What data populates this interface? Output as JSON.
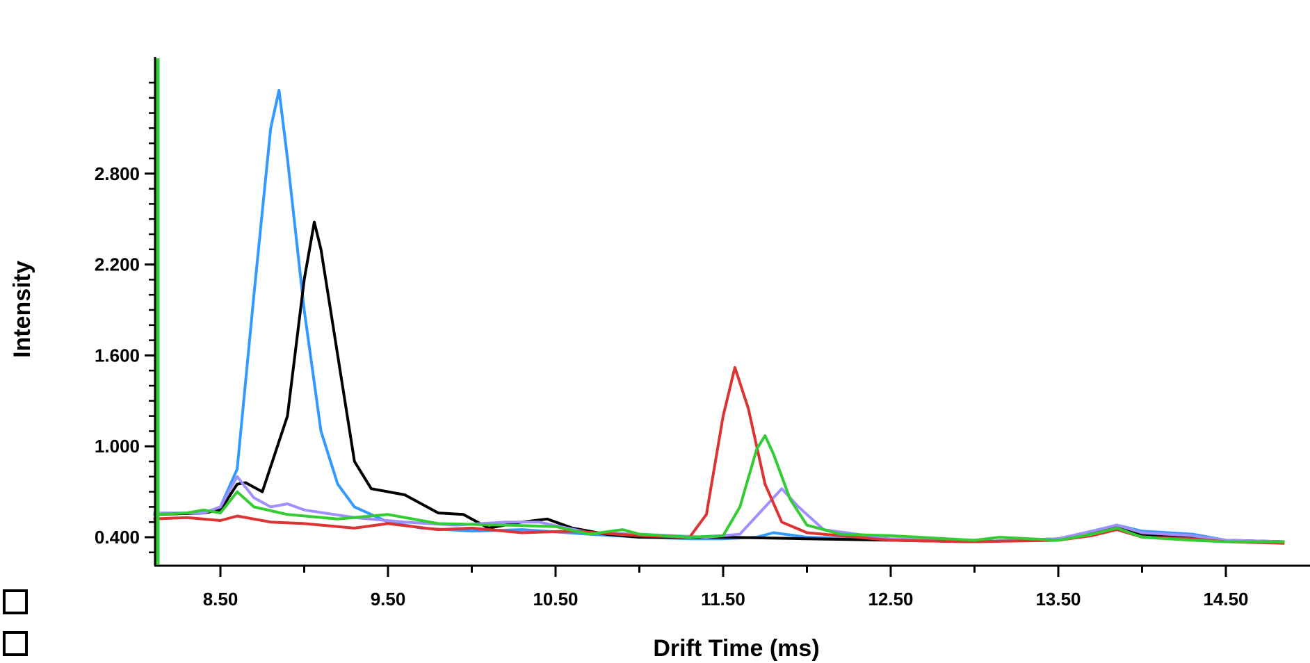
{
  "chart_data": {
    "type": "line",
    "title": "",
    "xlabel": "Drift Time (ms)",
    "ylabel": "Intensity",
    "xlim": [
      8.1,
      14.85
    ],
    "ylim": [
      0.22,
      3.55
    ],
    "x_ticks": [
      "8.50",
      "9.50",
      "10.50",
      "11.50",
      "12.50",
      "13.50",
      "14.50"
    ],
    "y_ticks": [
      "0.400",
      "1.000",
      "1.600",
      "2.200",
      "2.800"
    ],
    "grid": false,
    "legend": "none",
    "series": [
      {
        "color": "#3399ff",
        "x": [
          8.1,
          8.4,
          8.5,
          8.6,
          8.7,
          8.8,
          8.85,
          8.9,
          9.0,
          9.1,
          9.2,
          9.3,
          9.5,
          9.7,
          10.0,
          10.3,
          10.7,
          11.0,
          11.3,
          11.5,
          11.7,
          11.8,
          12.0,
          12.5,
          13.0,
          13.3,
          13.5,
          13.7,
          13.85,
          14.0,
          14.3,
          14.5,
          14.85
        ],
        "y": [
          0.55,
          0.56,
          0.6,
          0.85,
          2.0,
          3.1,
          3.35,
          2.9,
          1.9,
          1.1,
          0.75,
          0.6,
          0.5,
          0.46,
          0.44,
          0.45,
          0.42,
          0.4,
          0.39,
          0.39,
          0.4,
          0.43,
          0.4,
          0.38,
          0.37,
          0.38,
          0.39,
          0.44,
          0.48,
          0.44,
          0.42,
          0.38,
          0.37
        ]
      },
      {
        "color": "#000000",
        "x": [
          8.1,
          8.4,
          8.5,
          8.6,
          8.65,
          8.75,
          8.9,
          9.0,
          9.06,
          9.1,
          9.2,
          9.3,
          9.4,
          9.6,
          9.8,
          9.95,
          10.1,
          10.3,
          10.45,
          10.6,
          10.8,
          11.0,
          11.5,
          12.0,
          13.0,
          13.5,
          13.7,
          13.85,
          14.0,
          14.3,
          14.5,
          14.85
        ],
        "y": [
          0.55,
          0.56,
          0.58,
          0.75,
          0.76,
          0.7,
          1.2,
          2.1,
          2.48,
          2.3,
          1.6,
          0.9,
          0.72,
          0.68,
          0.56,
          0.55,
          0.46,
          0.5,
          0.52,
          0.46,
          0.42,
          0.4,
          0.4,
          0.39,
          0.37,
          0.39,
          0.43,
          0.47,
          0.42,
          0.4,
          0.38,
          0.37
        ]
      },
      {
        "color": "#9f8fff",
        "x": [
          8.1,
          8.4,
          8.5,
          8.6,
          8.7,
          8.8,
          8.9,
          9.0,
          9.3,
          9.6,
          9.9,
          10.2,
          10.4,
          10.7,
          11.0,
          11.4,
          11.6,
          11.75,
          11.85,
          11.95,
          12.1,
          12.5,
          13.0,
          13.5,
          13.7,
          13.85,
          14.0,
          14.3,
          14.5,
          14.85
        ],
        "y": [
          0.56,
          0.56,
          0.6,
          0.8,
          0.66,
          0.6,
          0.62,
          0.58,
          0.53,
          0.5,
          0.48,
          0.5,
          0.5,
          0.43,
          0.42,
          0.4,
          0.42,
          0.6,
          0.72,
          0.6,
          0.45,
          0.39,
          0.37,
          0.39,
          0.44,
          0.48,
          0.43,
          0.41,
          0.38,
          0.37
        ]
      },
      {
        "color": "#dd3333",
        "x": [
          8.1,
          8.3,
          8.5,
          8.6,
          8.8,
          9.0,
          9.3,
          9.5,
          9.8,
          10.0,
          10.3,
          10.6,
          11.0,
          11.3,
          11.4,
          11.5,
          11.57,
          11.65,
          11.75,
          11.85,
          12.0,
          12.5,
          13.0,
          13.5,
          13.7,
          13.85,
          14.0,
          14.3,
          14.5,
          14.85
        ],
        "y": [
          0.52,
          0.53,
          0.51,
          0.54,
          0.5,
          0.49,
          0.46,
          0.49,
          0.45,
          0.46,
          0.43,
          0.44,
          0.41,
          0.4,
          0.55,
          1.2,
          1.52,
          1.25,
          0.75,
          0.5,
          0.43,
          0.38,
          0.37,
          0.38,
          0.41,
          0.45,
          0.4,
          0.39,
          0.37,
          0.36
        ]
      },
      {
        "color": "#33cc33",
        "x": [
          8.1,
          8.3,
          8.4,
          8.5,
          8.6,
          8.7,
          8.9,
          9.2,
          9.5,
          9.8,
          10.2,
          10.5,
          10.7,
          10.9,
          11.0,
          11.3,
          11.5,
          11.6,
          11.7,
          11.75,
          11.8,
          11.9,
          12.0,
          12.2,
          12.5,
          13.0,
          13.15,
          13.5,
          13.7,
          13.85,
          14.0,
          14.3,
          14.5,
          14.85
        ],
        "y": [
          0.55,
          0.56,
          0.58,
          0.56,
          0.7,
          0.6,
          0.55,
          0.52,
          0.55,
          0.49,
          0.48,
          0.47,
          0.42,
          0.45,
          0.42,
          0.4,
          0.41,
          0.6,
          0.98,
          1.07,
          0.95,
          0.65,
          0.48,
          0.42,
          0.41,
          0.38,
          0.4,
          0.38,
          0.42,
          0.46,
          0.4,
          0.38,
          0.37,
          0.37
        ]
      }
    ]
  },
  "controls": {
    "checkbox_1": "unchecked",
    "checkbox_2": "unchecked"
  }
}
